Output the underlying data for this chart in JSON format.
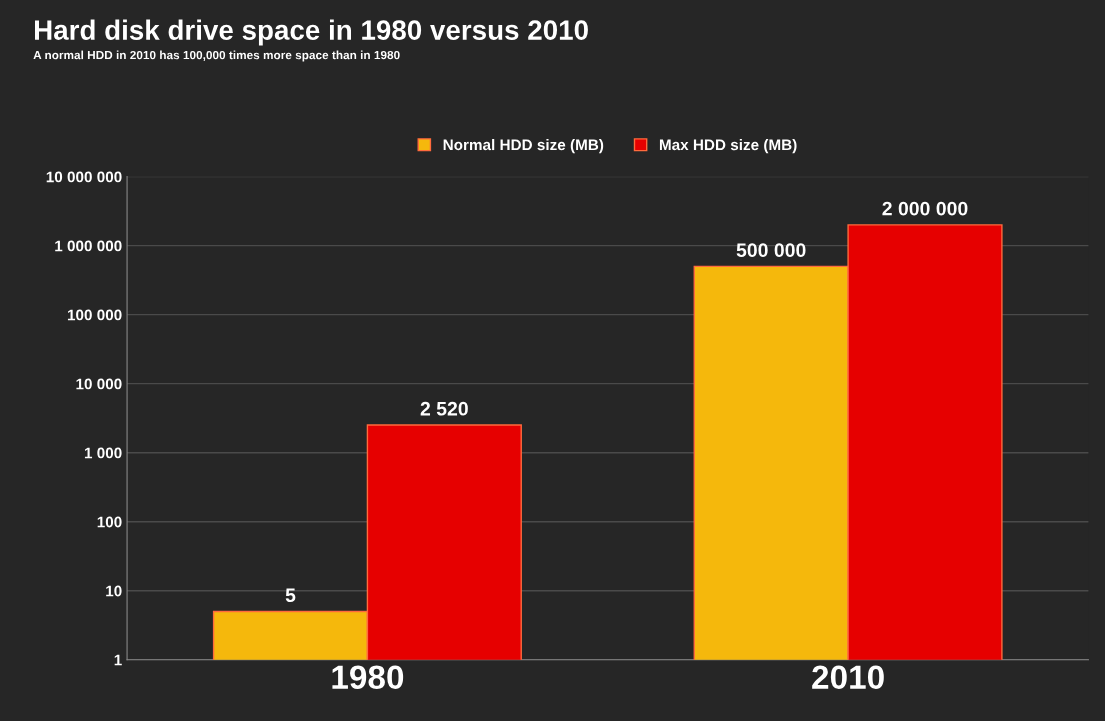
{
  "chart_data": {
    "type": "bar",
    "title": "Hard disk drive space in 1980 versus 2010",
    "subtitle": "A normal HDD in 2010 has 100,000 times more space than in 1980",
    "categories": [
      "1980",
      "2010"
    ],
    "series": [
      {
        "name": "Normal HDD size (MB)",
        "color": "#f5b80c",
        "values": [
          5,
          500000
        ],
        "value_labels": [
          "5",
          "500 000"
        ]
      },
      {
        "name": "Max HDD size (MB)",
        "color": "#e60000",
        "values": [
          2520,
          2000000
        ],
        "value_labels": [
          "2 520",
          "2 000 000"
        ]
      }
    ],
    "log": "y",
    "ylim": [
      1,
      10000000
    ],
    "yticks": [
      {
        "value": 1,
        "label": "1"
      },
      {
        "value": 10,
        "label": "10"
      },
      {
        "value": 100,
        "label": "100"
      },
      {
        "value": 1000,
        "label": "1 000"
      },
      {
        "value": 10000,
        "label": "10 000"
      },
      {
        "value": 100000,
        "label": "100 000"
      },
      {
        "value": 1000000,
        "label": "1 000 000"
      },
      {
        "value": 10000000,
        "label": "10 000 000"
      }
    ],
    "grid": "y",
    "legend": "top"
  }
}
